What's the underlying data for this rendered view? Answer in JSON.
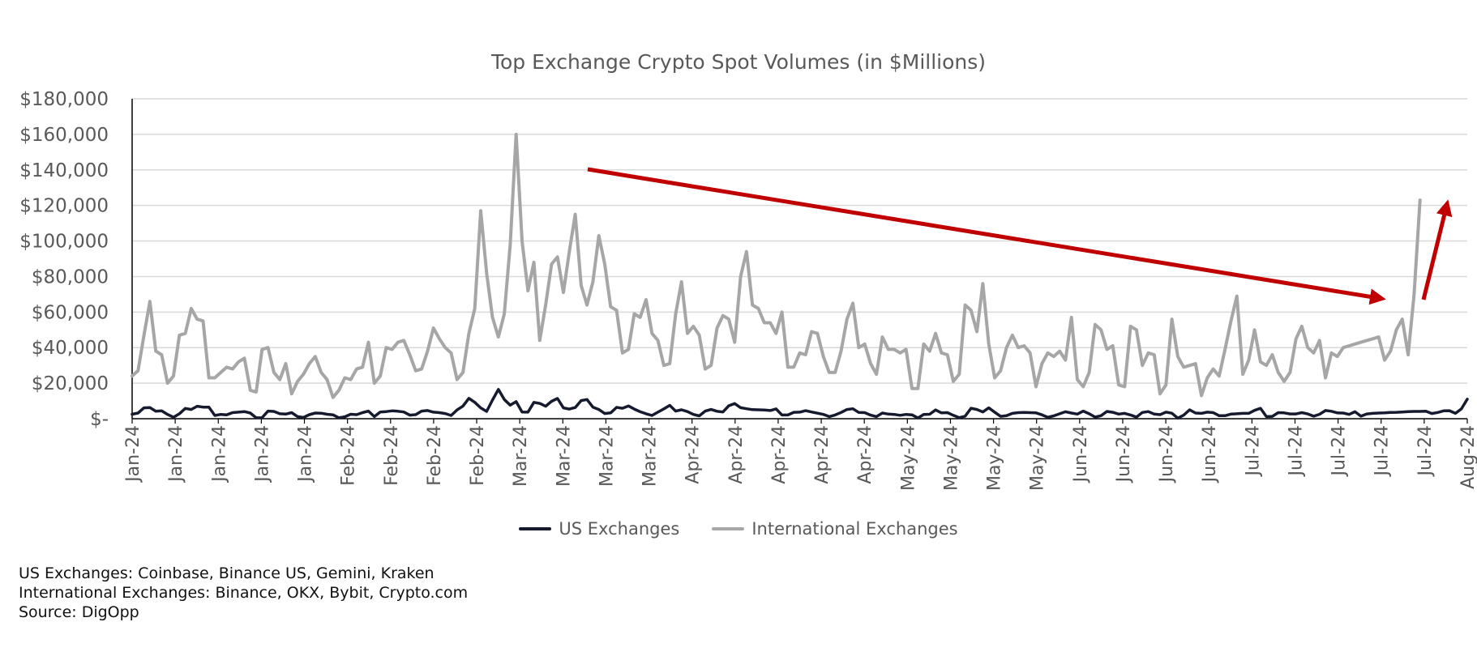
{
  "chart_data": {
    "type": "line",
    "title": "Top Exchange Crypto Spot Volumes (in $Millions)",
    "ylim": [
      0,
      180000
    ],
    "yticks": [
      0,
      20000,
      40000,
      60000,
      80000,
      100000,
      120000,
      140000,
      160000,
      180000
    ],
    "ytick_labels": [
      "$-",
      "$20,000",
      "$40,000",
      "$60,000",
      "$80,000",
      "$100,000",
      "$120,000",
      "$140,000",
      "$160,000",
      "$180,000"
    ],
    "xtick_labels": [
      "Jan-24",
      "Jan-24",
      "Jan-24",
      "Jan-24",
      "Jan-24",
      "Feb-24",
      "Feb-24",
      "Feb-24",
      "Feb-24",
      "Mar-24",
      "Mar-24",
      "Mar-24",
      "Mar-24",
      "Apr-24",
      "Apr-24",
      "Apr-24",
      "Apr-24",
      "Apr-24",
      "May-24",
      "May-24",
      "May-24",
      "May-24",
      "Jun-24",
      "Jun-24",
      "Jun-24",
      "Jun-24",
      "Jul-24",
      "Jul-24",
      "Jul-24",
      "Jul-24",
      "Jul-24",
      "Aug-24"
    ],
    "grid": "horizontal",
    "legend_position": "bottom",
    "series": [
      {
        "name": "US Exchanges",
        "color": "#161a2e",
        "values": [
          2500,
          3200,
          6100,
          6300,
          4200,
          4400,
          2400,
          800,
          2800,
          5800,
          5200,
          7000,
          6500,
          6500,
          1800,
          2400,
          2200,
          3400,
          3700,
          4000,
          3200,
          500,
          600,
          4300,
          4100,
          2800,
          2600,
          3400,
          1200,
          700,
          2300,
          3200,
          3100,
          2500,
          2200,
          500,
          1100,
          2500,
          2300,
          3400,
          4300,
          1200,
          3800,
          4000,
          4400,
          4200,
          3800,
          2000,
          2300,
          4300,
          4600,
          3700,
          3400,
          2900,
          1800,
          4900,
          7100,
          11500,
          9200,
          6100,
          4100,
          10500,
          16500,
          10800,
          7600,
          9600,
          3800,
          3700,
          9200,
          8600,
          7000,
          9800,
          11400,
          6100,
          5400,
          6300,
          10200,
          10800,
          6500,
          5200,
          2900,
          3300,
          6400,
          5900,
          7200,
          5400,
          3900,
          2800,
          1800,
          3700,
          5500,
          7500,
          4300,
          5000,
          4000,
          2400,
          1600,
          4300,
          5200,
          4200,
          3800,
          7300,
          8500,
          6200,
          5600,
          5100,
          5000,
          4900,
          4600,
          5500,
          2100,
          2100,
          3600,
          3700,
          4500,
          3800,
          3100,
          2400,
          1200,
          2100,
          3500,
          5200,
          5600,
          3500,
          3400,
          2000,
          1200,
          3200,
          2600,
          2400,
          1900,
          2400,
          2200,
          400,
          2400,
          2500,
          4900,
          3300,
          3400,
          1900,
          600,
          1400,
          5900,
          5200,
          3800,
          6100,
          3700,
          1300,
          1700,
          3000,
          3400,
          3500,
          3400,
          3300,
          2200,
          800,
          1600,
          2800,
          3900,
          3200,
          2600,
          4300,
          2800,
          900,
          1700,
          4100,
          3600,
          2600,
          3000,
          2100,
          900,
          3500,
          4000,
          2600,
          2300,
          3700,
          3100,
          300,
          2000,
          5000,
          3200,
          3000,
          3700,
          3400,
          1700,
          1700,
          2600,
          2800,
          3000,
          3000,
          4700,
          5900,
          1200,
          1300,
          3400,
          3300,
          2700,
          2700,
          3400,
          2700,
          1400,
          2500,
          4600,
          4200,
          3300,
          3200,
          2400,
          3900,
          1400,
          2700,
          3000,
          3200,
          3300,
          3500,
          3600,
          3800,
          4000,
          4100,
          4100,
          4200,
          2900,
          3500,
          4400,
          4500,
          3000,
          5500,
          11000
        ]
      },
      {
        "name": "International Exchanges",
        "color": "#a6a6a6",
        "values": [
          24000,
          27000,
          47000,
          66000,
          38000,
          36000,
          20000,
          24000,
          47000,
          48000,
          62000,
          56000,
          55000,
          23000,
          23000,
          26000,
          29000,
          28000,
          32000,
          34000,
          16000,
          15000,
          39000,
          40000,
          26000,
          22000,
          31000,
          14000,
          21000,
          25000,
          31000,
          35000,
          26000,
          22000,
          12000,
          16000,
          23000,
          22000,
          28000,
          29000,
          43000,
          20000,
          24000,
          40000,
          39000,
          43000,
          44000,
          36000,
          27000,
          28000,
          38000,
          51000,
          45000,
          40000,
          37000,
          22000,
          26000,
          48000,
          62000,
          117000,
          82000,
          57000,
          46000,
          59000,
          98000,
          160000,
          100000,
          72000,
          88000,
          44000,
          64000,
          87000,
          91000,
          71000,
          94000,
          115000,
          75000,
          64000,
          77000,
          103000,
          87000,
          63000,
          61000,
          37000,
          39000,
          59000,
          57000,
          67000,
          48000,
          44000,
          30000,
          31000,
          59000,
          77000,
          48000,
          52000,
          47000,
          28000,
          30000,
          51000,
          58000,
          56000,
          43000,
          80000,
          94000,
          64000,
          62000,
          54000,
          54000,
          48000,
          60000,
          29000,
          29000,
          37000,
          36000,
          49000,
          48000,
          35000,
          26000,
          26000,
          38000,
          56000,
          65000,
          40000,
          42000,
          31000,
          25000,
          46000,
          39000,
          39000,
          37000,
          39000,
          17000,
          17000,
          42000,
          38000,
          48000,
          37000,
          36000,
          21000,
          25000,
          64000,
          61000,
          49000,
          76000,
          42000,
          23000,
          27000,
          40000,
          47000,
          40000,
          41000,
          37000,
          18000,
          31000,
          37000,
          35000,
          38000,
          33000,
          57000,
          22000,
          18000,
          26000,
          53000,
          50000,
          39000,
          41000,
          19000,
          18000,
          52000,
          50000,
          30000,
          37000,
          36000,
          14000,
          19000,
          56000,
          35000,
          29000,
          30000,
          31000,
          13000,
          23000,
          28000,
          24000,
          39000,
          55000,
          69000,
          25000,
          33000,
          50000,
          32000,
          30000,
          36000,
          26000,
          21000,
          26000,
          45000,
          52000,
          40000,
          37000,
          44000,
          23000,
          37000,
          35000,
          40000,
          41000,
          42000,
          43000,
          44000,
          45000,
          46000,
          33000,
          38000,
          50000,
          56000,
          36000,
          70000,
          123000
        ]
      }
    ]
  },
  "notes": [
    "US Exchanges: Coinbase, Binance US, Gemini, Kraken",
    "International Exchanges: Binance, OKX, Bybit, Crypto.com",
    "Source: DigOpp"
  ],
  "annotation_color": "#c00000"
}
